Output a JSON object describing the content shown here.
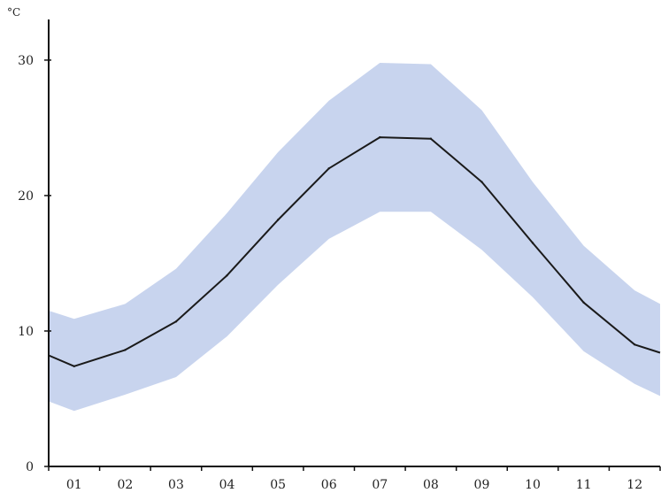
{
  "chart_data": {
    "type": "line",
    "title": "",
    "xlabel": "",
    "ylabel": "°C",
    "categories": [
      "01",
      "02",
      "03",
      "04",
      "05",
      "06",
      "07",
      "08",
      "09",
      "10",
      "11",
      "12"
    ],
    "x_start": 0.5,
    "x_end": 12.5,
    "xlim": [
      0.5,
      12.5
    ],
    "ylim": [
      0,
      33
    ],
    "yticks": [
      "0",
      "10",
      "20",
      "30"
    ],
    "grid": false,
    "legend": "none",
    "series": [
      {
        "role": "mean-line",
        "values": [
          7.4,
          8.6,
          10.7,
          14.1,
          18.2,
          22.0,
          24.3,
          24.2,
          21.0,
          16.5,
          12.1,
          9.0
        ],
        "start_value": 8.2,
        "end_value": 8.4,
        "color": "#1a1a1a"
      },
      {
        "role": "upper-band",
        "values": [
          10.9,
          12.0,
          14.6,
          18.7,
          23.2,
          27.0,
          29.8,
          29.7,
          26.3,
          21.0,
          16.3,
          13.0
        ],
        "start_value": 11.5,
        "end_value": 12.0,
        "color": "#c8d4ee"
      },
      {
        "role": "lower-band",
        "values": [
          4.1,
          5.3,
          6.6,
          9.6,
          13.4,
          16.8,
          18.8,
          18.8,
          16.0,
          12.5,
          8.5,
          6.1
        ],
        "start_value": 4.8,
        "end_value": 5.2,
        "color": "#c8d4ee"
      }
    ]
  }
}
